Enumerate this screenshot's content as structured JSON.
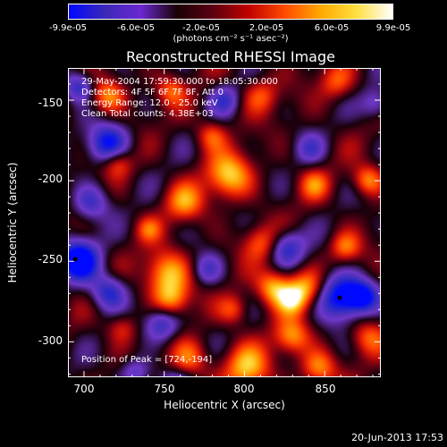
{
  "colorbar": {
    "ticks": [
      "-9.9e-05",
      "-6.0e-05",
      "-2.0e-05",
      "2.0e-05",
      "6.0e-05",
      "9.9e-05"
    ],
    "units": "(photons cm⁻² s⁻¹ asec⁻²)",
    "range": [
      -9.9e-05,
      9.9e-05
    ],
    "palette": [
      "#0008ff",
      "#3b28b8",
      "#6a28d0",
      "#1a0006",
      "#5a0010",
      "#c00000",
      "#ff4a00",
      "#ffa800",
      "#ffe040",
      "#ffffff"
    ]
  },
  "chart_data": {
    "type": "heatmap",
    "title": "Reconstructed RHESSI Image",
    "xlabel": "Heliocentric X (arcsec)",
    "ylabel": "Heliocentric Y (arcsec)",
    "xlim": [
      690,
      885
    ],
    "ylim": [
      -322,
      -130
    ],
    "x_ticks": [
      "700",
      "750",
      "800",
      "850"
    ],
    "x_tick_values": [
      700,
      750,
      800,
      850
    ],
    "y_ticks": [
      "-150",
      "-200",
      "-250",
      "-300"
    ],
    "y_tick_values": [
      -150,
      -200,
      -250,
      -300
    ],
    "peak": [
      724,
      -194
    ],
    "annotations": [
      "29-May-2004 17:59:30.000 to 18:05:30.000",
      "Detectors: 4F 5F 6F 7F 8F, Att 0",
      "Energy Range: 12.0 - 25.0 keV",
      "Clean     Total counts: 4.38E+03",
      "Position of Peak = [724,-194]"
    ]
  },
  "footer": {
    "date": "20-Jun-2013 17:53"
  }
}
